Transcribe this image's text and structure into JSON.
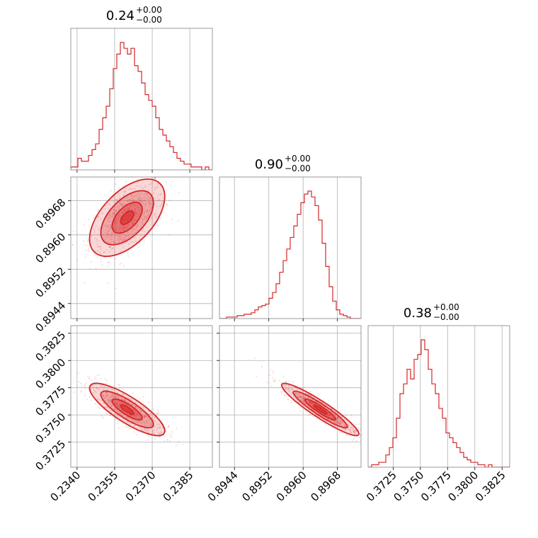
{
  "chart_data": {
    "type": "corner",
    "color": "#d62728",
    "grid": true,
    "parameters": [
      {
        "title_value": "0.24",
        "title_plus": "+0.00",
        "title_minus": "−0.00",
        "range": [
          0.23375,
          0.2394
        ],
        "ticks": [
          {
            "v": 0.234,
            "label": "0.2340"
          },
          {
            "v": 0.2355,
            "label": "0.2355"
          },
          {
            "v": 0.237,
            "label": "0.2370"
          },
          {
            "v": 0.2385,
            "label": "0.2385"
          }
        ],
        "mean": 0.236,
        "sd": 0.00075,
        "hist": [
          1,
          1,
          4,
          3,
          3,
          5,
          7,
          9,
          14,
          18,
          22,
          28,
          35,
          40,
          44,
          42,
          40,
          42,
          36,
          34,
          30,
          26,
          24,
          22,
          18,
          14,
          12,
          10,
          8,
          6,
          4,
          3,
          2,
          2,
          1,
          1,
          1,
          0,
          1,
          0
        ]
      },
      {
        "title_value": "0.90",
        "title_plus": "+0.00",
        "title_minus": "−0.00",
        "range": [
          0.89405,
          0.89735
        ],
        "ticks": [
          {
            "v": 0.8944,
            "label": "0.8944"
          },
          {
            "v": 0.8952,
            "label": "0.8952"
          },
          {
            "v": 0.896,
            "label": "0.8960"
          },
          {
            "v": 0.8968,
            "label": "0.8968"
          }
        ],
        "mean": 0.8964,
        "sd": 0.00045,
        "hist": [
          0,
          0,
          1,
          1,
          1,
          2,
          2,
          3,
          3,
          4,
          6,
          8,
          9,
          10,
          14,
          18,
          24,
          32,
          40,
          48,
          56,
          64,
          72,
          80,
          86,
          88,
          84,
          78,
          68,
          52,
          36,
          22,
          12,
          6,
          3,
          2,
          1,
          0,
          0,
          0
        ]
      },
      {
        "title_value": "0.38",
        "title_plus": "+0.00",
        "title_minus": "−0.00",
        "range": [
          0.3702,
          0.3832
        ],
        "ticks": [
          {
            "v": 0.3725,
            "label": "0.3725"
          },
          {
            "v": 0.375,
            "label": "0.3750"
          },
          {
            "v": 0.3775,
            "label": "0.3775"
          },
          {
            "v": 0.38,
            "label": "0.3800"
          },
          {
            "v": 0.3825,
            "label": "0.3825"
          }
        ],
        "mean": 0.3755,
        "sd": 0.0012,
        "hist": [
          0,
          1,
          1,
          2,
          2,
          5,
          8,
          12,
          20,
          30,
          34,
          40,
          36,
          44,
          46,
          52,
          48,
          40,
          34,
          30,
          24,
          20,
          14,
          12,
          10,
          8,
          6,
          4,
          3,
          2,
          2,
          1,
          1,
          0,
          1,
          0,
          0,
          0,
          0,
          0
        ]
      }
    ],
    "correlations": {
      "1_0": 0.55,
      "2_0": -0.82,
      "2_1": -0.93
    }
  }
}
